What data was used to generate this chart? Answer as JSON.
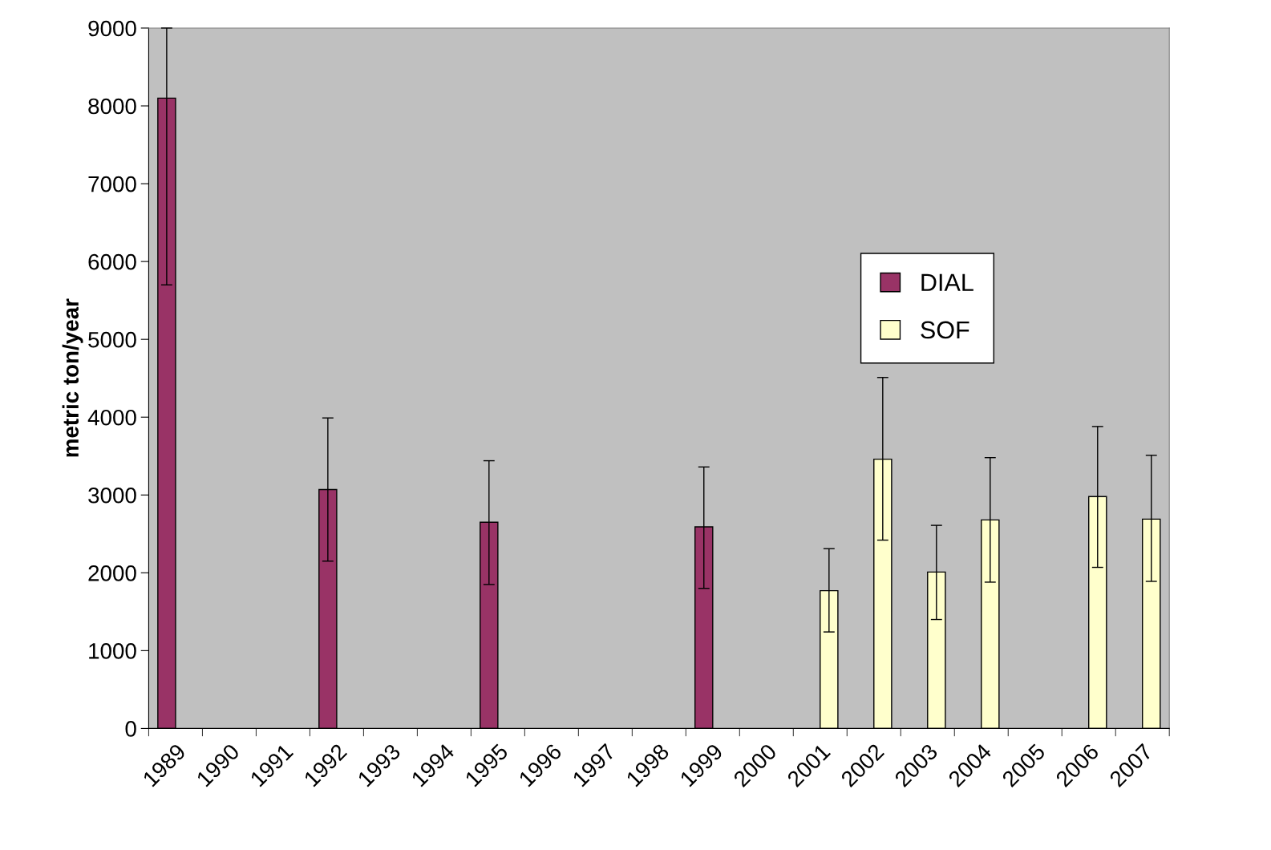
{
  "chart_data": {
    "type": "bar",
    "ylabel": "metric ton/year",
    "categories": [
      "1989",
      "1990",
      "1991",
      "1992",
      "1993",
      "1994",
      "1995",
      "1996",
      "1997",
      "1998",
      "1999",
      "2000",
      "2001",
      "2002",
      "2003",
      "2004",
      "2005",
      "2006",
      "2007"
    ],
    "series": [
      {
        "name": "DIAL",
        "color": "#993366",
        "values": [
          8100,
          null,
          null,
          3070,
          null,
          null,
          2650,
          null,
          null,
          null,
          2590,
          null,
          null,
          null,
          null,
          null,
          null,
          null,
          null
        ],
        "errors": [
          [
            5700,
            9000
          ],
          null,
          null,
          [
            2150,
            3990
          ],
          null,
          null,
          [
            1850,
            3440
          ],
          null,
          null,
          null,
          [
            1800,
            3360
          ],
          null,
          null,
          null,
          null,
          null,
          null,
          null,
          null
        ]
      },
      {
        "name": "SOF",
        "color": "#ffffcc",
        "values": [
          null,
          null,
          null,
          null,
          null,
          null,
          null,
          null,
          null,
          null,
          null,
          null,
          1770,
          3460,
          2010,
          2680,
          null,
          2980,
          2690
        ],
        "errors": [
          null,
          null,
          null,
          null,
          null,
          null,
          null,
          null,
          null,
          null,
          null,
          null,
          [
            1240,
            2310
          ],
          [
            2420,
            4510
          ],
          [
            1400,
            2610
          ],
          [
            1880,
            3480
          ],
          null,
          [
            2070,
            3880
          ],
          [
            1890,
            3510
          ]
        ]
      }
    ],
    "ylim": [
      0,
      9000
    ],
    "yticks": [
      0,
      1000,
      2000,
      3000,
      4000,
      5000,
      6000,
      7000,
      8000,
      9000
    ],
    "grid": false,
    "legend": "right"
  }
}
